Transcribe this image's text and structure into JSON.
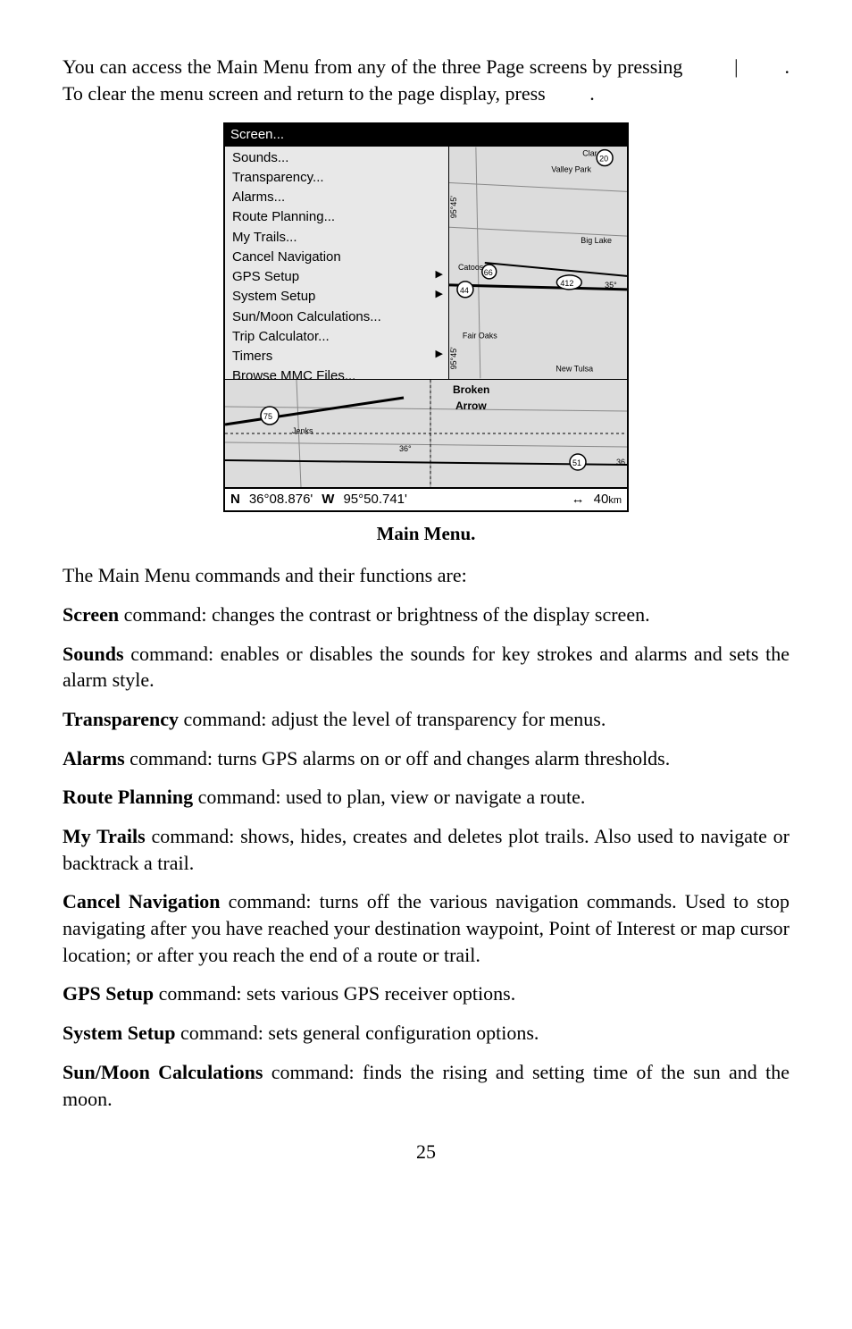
{
  "intro": {
    "line1_a": "You can access the Main Menu from any of the three Page screens by",
    "line2_a": "pressing",
    "line2_b": "|",
    "line2_c": ". To clear the menu screen and return to the page",
    "line3_a": "display, press",
    "line3_b": "."
  },
  "screenshot": {
    "titlebar": "Screen...",
    "menu_items": [
      {
        "label": "Sounds...",
        "sub": false
      },
      {
        "label": "Transparency...",
        "sub": false
      },
      {
        "label": "Alarms...",
        "sub": false
      },
      {
        "label": "Route Planning...",
        "sub": false
      },
      {
        "label": "My Trails...",
        "sub": false
      },
      {
        "label": "Cancel Navigation",
        "sub": false
      },
      {
        "label": "GPS Setup",
        "sub": true
      },
      {
        "label": "System Setup",
        "sub": true
      },
      {
        "label": "Sun/Moon Calculations...",
        "sub": false
      },
      {
        "label": "Trip Calculator...",
        "sub": false
      },
      {
        "label": "Timers",
        "sub": true
      },
      {
        "label": "Browse MMC Files...",
        "sub": false
      }
    ],
    "map_right_labels": {
      "top_right": "Clar",
      "valley_park": "Valley Park",
      "big_lake": "Big Lake",
      "catoosa": "Catoosa",
      "hw66": "66",
      "hw44": "44",
      "hw412": "412",
      "deg": "35°",
      "fair_oaks": "Fair Oaks",
      "new_tulsa": "New Tulsa",
      "hw20": "20",
      "coord": "95°45'"
    },
    "map_lower_labels": {
      "broken": "Broken",
      "arrow": "Arrow",
      "jenks": "Jenks",
      "hw75": "75",
      "hw51": "51",
      "deg": "36°",
      "deg2": "36"
    },
    "statusbar": {
      "N": "N",
      "lat": "36°08.876'",
      "W": "W",
      "lon": "95°50.741'",
      "arrow": "↔",
      "dist": "40",
      "unit": "km"
    }
  },
  "caption": "Main Menu.",
  "body_intro": "The Main Menu commands and their functions are:",
  "commands": {
    "screen": {
      "name": "Screen",
      "rest": " command: changes the contrast or brightness of the display screen."
    },
    "sounds": {
      "name": "Sounds",
      "rest": " command: enables or disables the sounds for key strokes and alarms and sets the alarm style."
    },
    "transparency": {
      "name": "Transparency",
      "rest": " command: adjust the level of transparency for menus."
    },
    "alarms": {
      "name": "Alarms",
      "rest": " command: turns GPS alarms on or off and changes alarm thresholds."
    },
    "route": {
      "name": "Route Planning",
      "rest": " command: used to plan, view or navigate a route."
    },
    "trails": {
      "name": "My Trails",
      "rest": " command: shows, hides, creates and deletes plot trails. Also used to navigate or backtrack a trail."
    },
    "cancel": {
      "name": "Cancel Navigation",
      "rest": " command: turns off the various navigation commands. Used to stop navigating after you have reached your destination waypoint, Point of Interest or map cursor location; or after you reach the end of a route or trail."
    },
    "gps": {
      "name": "GPS Setup",
      "rest": " command: sets various GPS receiver options."
    },
    "system": {
      "name": "System Setup",
      "rest": " command: sets general configuration options."
    },
    "sunmoon": {
      "name": "Sun/Moon Calculations",
      "rest": " command: finds the rising and setting time of the sun and the moon."
    }
  },
  "page_num": "25"
}
